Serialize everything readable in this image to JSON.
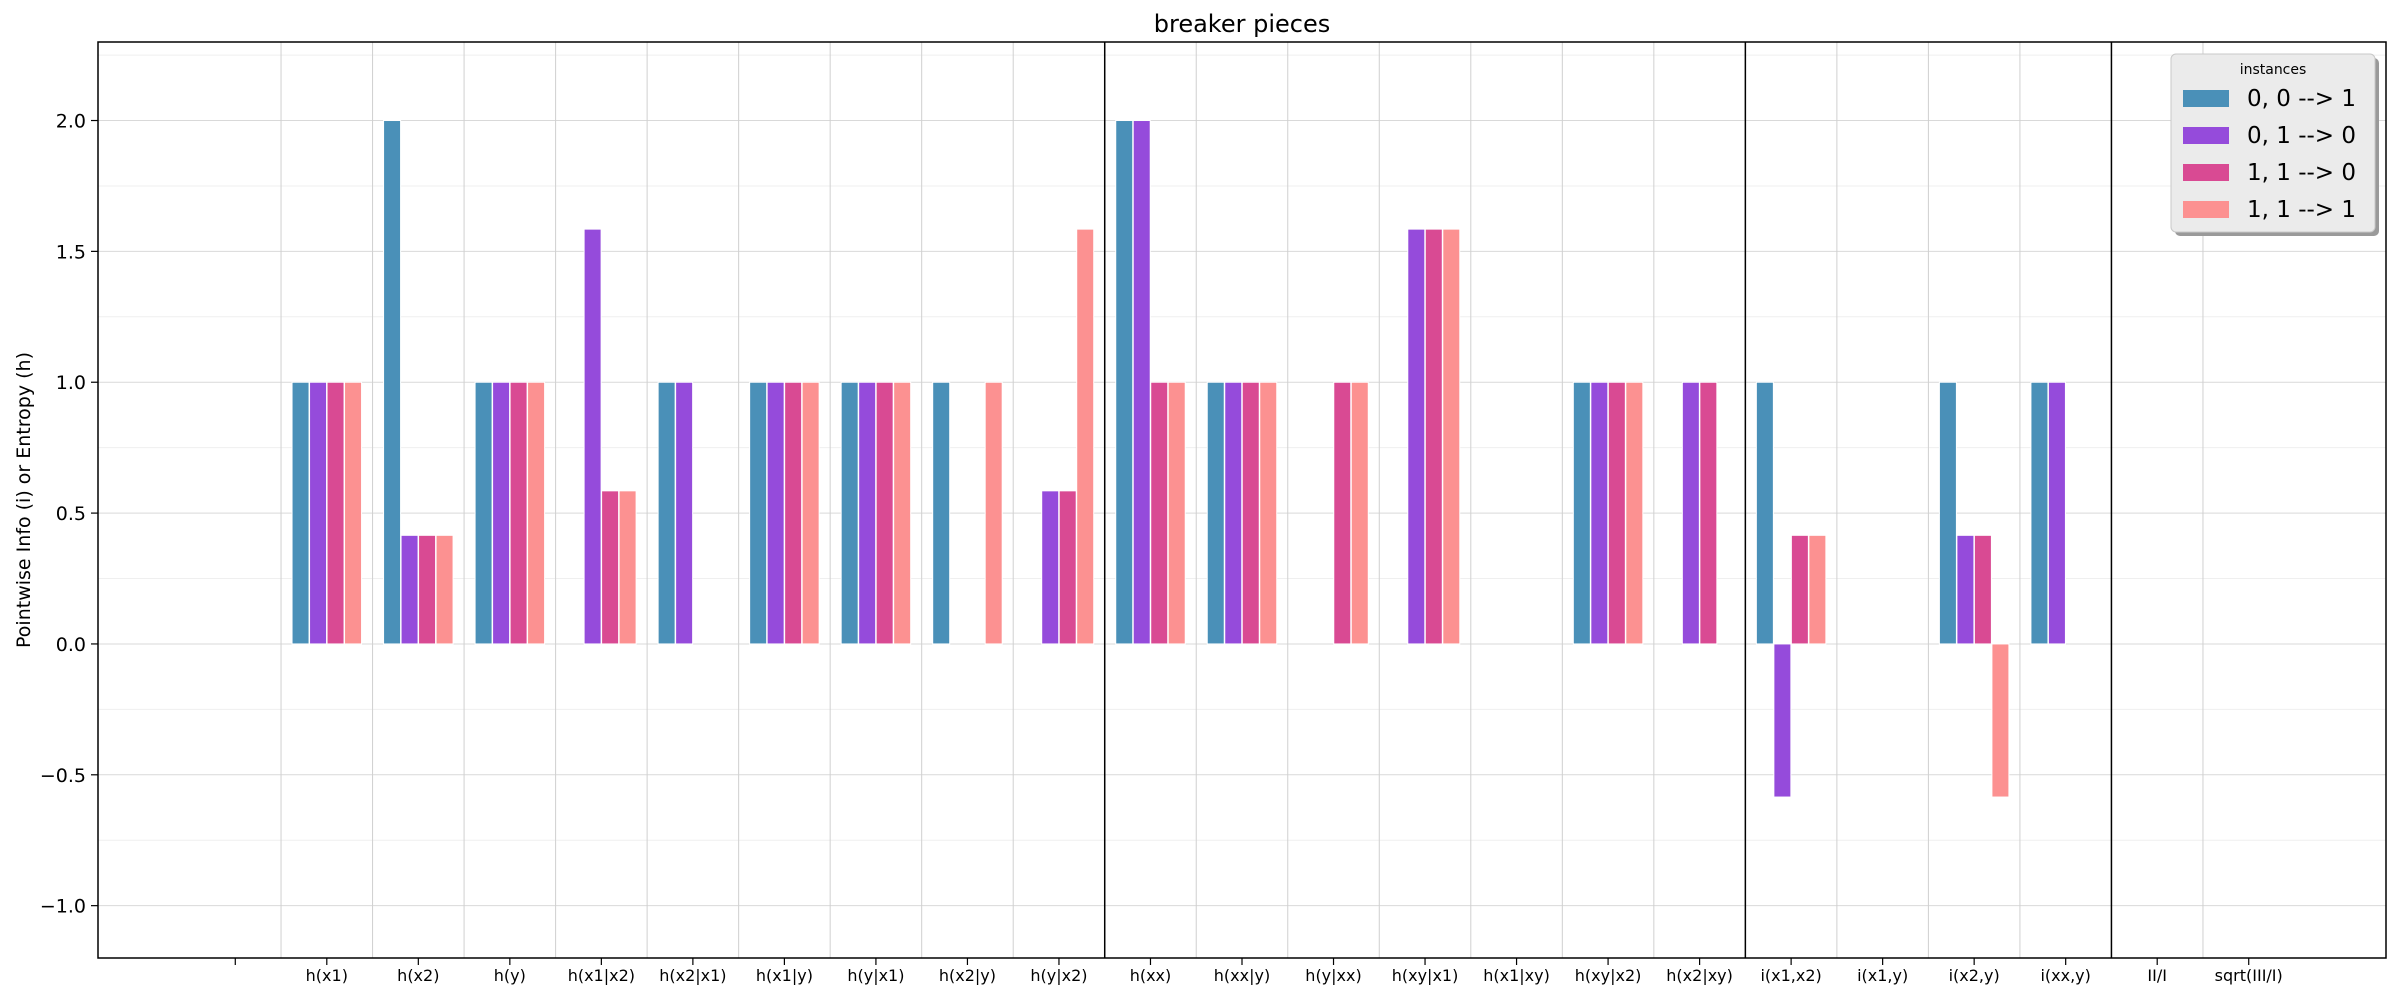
{
  "chart_data": {
    "type": "bar",
    "title": "breaker pieces",
    "xlabel": "",
    "ylabel": "Pointwise Info (i) or Entropy (h)",
    "ylim": [
      -1.2,
      2.3
    ],
    "yticks": [
      -1.0,
      -0.5,
      0.0,
      0.5,
      1.0,
      1.5,
      2.0
    ],
    "ytick_labels": [
      "−1.0",
      "−0.5",
      "0.0",
      "0.5",
      "1.0",
      "1.5",
      "2.0"
    ],
    "grid": true,
    "legend": {
      "title": "instances",
      "placement": "top-right"
    },
    "categories": [
      "",
      "h(x1)",
      "h(x2)",
      "h(y)",
      "h(x1|x2)",
      "h(x2|x1)",
      "h(x1|y)",
      "h(y|x1)",
      "h(x2|y)",
      "h(y|x2)",
      "h(xx)",
      "h(xx|y)",
      "h(y|xx)",
      "h(xy|x1)",
      "h(x1|xy)",
      "h(xy|x2)",
      "h(x2|xy)",
      "i(x1,x2)",
      "i(x1,y)",
      "i(x2,y)",
      "i(xx,y)",
      "II/I",
      "sqrt(III/I)"
    ],
    "group_separators_after": [
      "h(y|x2)",
      "h(x2|xy)",
      "i(xx,y)"
    ],
    "series": [
      {
        "name": "0, 0 --> 1",
        "color": "#4a90b8",
        "values": [
          null,
          1.0,
          2.0,
          1.0,
          0.0,
          1.0,
          1.0,
          1.0,
          1.0,
          0.0,
          2.0,
          1.0,
          0.0,
          0.0,
          0.0,
          1.0,
          0.0,
          1.0,
          0.0,
          1.0,
          1.0,
          null,
          null
        ]
      },
      {
        "name": "0, 1 --> 0",
        "color": "#954bdb",
        "values": [
          null,
          1.0,
          0.415,
          1.0,
          1.585,
          1.0,
          1.0,
          1.0,
          0.0,
          0.585,
          2.0,
          1.0,
          0.0,
          1.585,
          0.0,
          1.0,
          1.0,
          -0.585,
          0.0,
          0.415,
          1.0,
          null,
          null
        ]
      },
      {
        "name": "1, 1 --> 0",
        "color": "#d94a93",
        "values": [
          null,
          1.0,
          0.415,
          1.0,
          0.585,
          0.0,
          1.0,
          1.0,
          0.0,
          0.585,
          1.0,
          1.0,
          1.0,
          1.585,
          0.0,
          1.0,
          1.0,
          0.415,
          0.0,
          0.415,
          0.0,
          null,
          null
        ]
      },
      {
        "name": "1, 1 --> 1",
        "color": "#fc9191",
        "values": [
          null,
          1.0,
          0.415,
          1.0,
          0.585,
          0.0,
          1.0,
          1.0,
          1.0,
          1.585,
          1.0,
          1.0,
          1.0,
          1.585,
          0.0,
          1.0,
          0.0,
          0.415,
          0.0,
          -0.585,
          0.0,
          null,
          null
        ]
      }
    ]
  }
}
